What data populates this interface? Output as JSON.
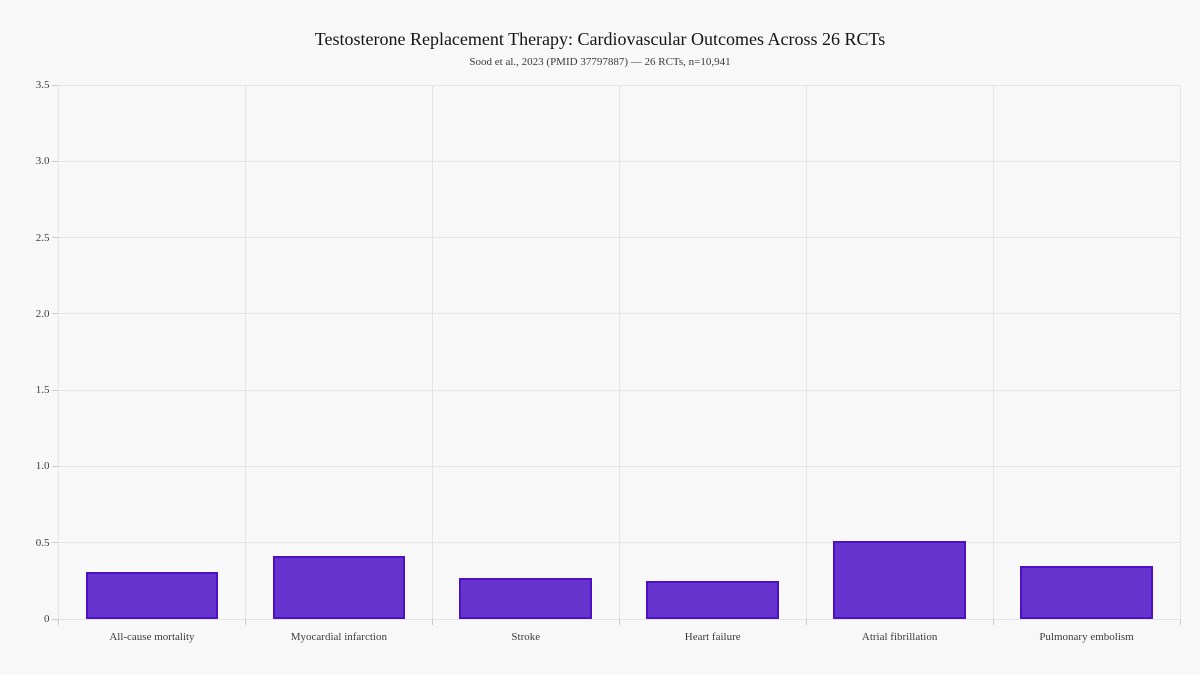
{
  "chart_data": {
    "type": "bar",
    "title": "Testosterone Replacement Therapy: Cardiovascular Outcomes Across 26 RCTs",
    "subtitle": "Sood et al., 2023 (PMID 37797887) — 26 RCTs, n=10,941",
    "categories": [
      "All-cause mortality",
      "Myocardial infarction",
      "Stroke",
      "Heart failure",
      "Atrial fibrillation",
      "Pulmonary embolism"
    ],
    "values": [
      0.31,
      0.41,
      0.27,
      0.25,
      0.51,
      0.35
    ],
    "xlabel": "",
    "ylabel": "",
    "ylim": [
      0,
      3.5
    ],
    "ytick_labels": [
      "0",
      "0.5",
      "1.0",
      "1.5",
      "2.0",
      "2.5",
      "3.0",
      "3.5"
    ],
    "grid": true,
    "legend": false,
    "colors": {
      "page_background": "#f8f8f8",
      "bar_fill": "#6633cc",
      "bar_edge": "#4d10c4",
      "gridline": "#e4e4e4",
      "tick_mark": "#cccccc",
      "axis_text": "#3d3d3d",
      "title_text": "#141414",
      "subtitle_text": "#3a3a3a"
    }
  }
}
